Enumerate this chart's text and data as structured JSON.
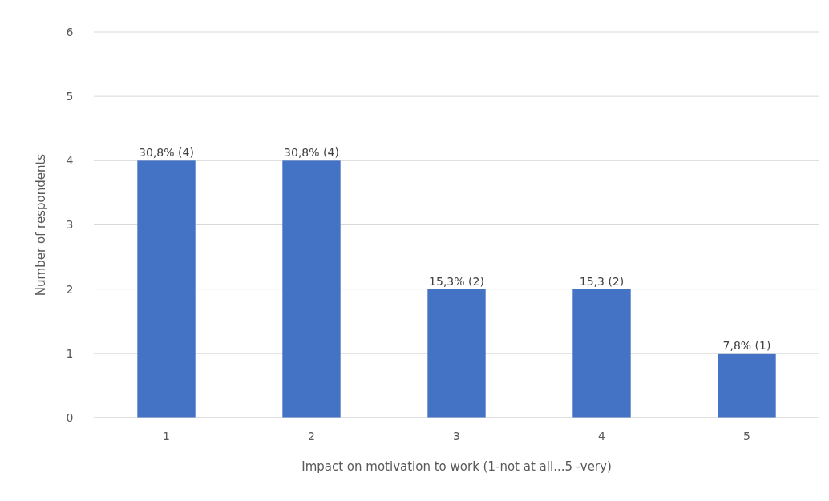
{
  "chart_data": {
    "type": "bar",
    "xlabel": "Impact on motivation to work  (1-not at all...5 -very)",
    "ylabel": "Number of respondents",
    "categories": [
      "1",
      "2",
      "3",
      "4",
      "5"
    ],
    "values": [
      4,
      4,
      2,
      2,
      1
    ],
    "value_labels": [
      "30,8% (4)",
      "30,8% (4)",
      "15,3% (2)",
      "15,3 (2)",
      "7,8% (1)"
    ],
    "color": "#4472c4",
    "ylim": [
      0,
      6
    ],
    "yticks": [
      0,
      1,
      2,
      3,
      4,
      5,
      6
    ],
    "grid": "y"
  }
}
